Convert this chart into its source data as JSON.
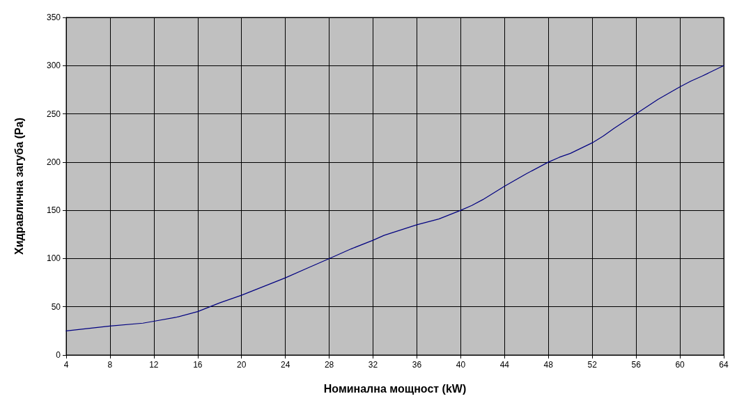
{
  "chart_data": {
    "type": "line",
    "xlabel": "Номинална мощност (kW)",
    "ylabel": "Хидравлична загуба (Pa)",
    "x": [
      4,
      8,
      11,
      12,
      14,
      16,
      18,
      20,
      22,
      24,
      26,
      28,
      30,
      32,
      33,
      36,
      38,
      40,
      41,
      42,
      44,
      46,
      48,
      49,
      50,
      52,
      53,
      54,
      56,
      58,
      60,
      61,
      62,
      64
    ],
    "series": [
      {
        "color": "#000080",
        "values": [
          25,
          30,
          33,
          35,
          39,
          45,
          54,
          62,
          71,
          80,
          90,
          100,
          110,
          119,
          124,
          135,
          141,
          150,
          155,
          161,
          175,
          188,
          200,
          205,
          209,
          220,
          227,
          235,
          250,
          265,
          278,
          284,
          289,
          300
        ]
      }
    ],
    "xlim": [
      4,
      64
    ],
    "xticks": [
      4,
      8,
      12,
      16,
      20,
      24,
      28,
      32,
      36,
      40,
      44,
      48,
      52,
      56,
      60,
      64
    ],
    "ylim": [
      0,
      350
    ],
    "yticks": [
      0,
      50,
      100,
      150,
      200,
      250,
      300,
      350
    ],
    "grid": true,
    "marker": "none",
    "line_style": "solid"
  }
}
